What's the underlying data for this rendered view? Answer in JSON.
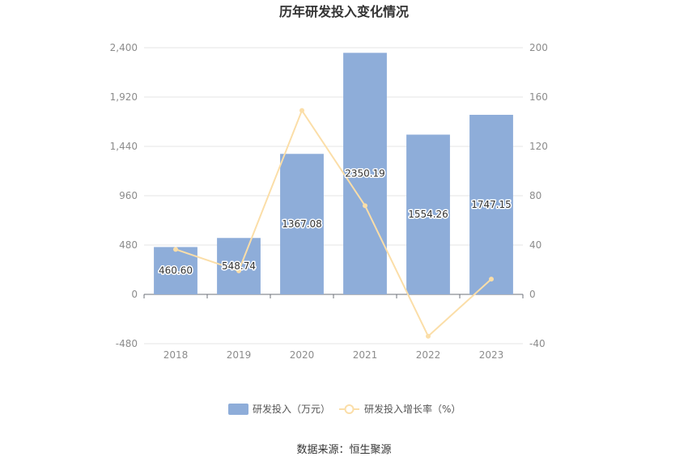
{
  "chart_data": {
    "type": "bar",
    "title": "历年研发投入变化情况",
    "categories": [
      "2018",
      "2019",
      "2020",
      "2021",
      "2022",
      "2023"
    ],
    "series": [
      {
        "name": "研发投入（万元）",
        "type": "bar",
        "axis": "left",
        "values": [
          460.6,
          548.74,
          1367.08,
          2350.19,
          1554.26,
          1747.15
        ],
        "labels": [
          "460.60",
          "548.74",
          "1367.08",
          "2350.19",
          "1554.26",
          "1747.15"
        ],
        "color": "#8eadd9"
      },
      {
        "name": "研发投入增长率（%）",
        "type": "line",
        "axis": "right",
        "values": [
          36.5,
          19.1,
          149.1,
          71.9,
          -33.9,
          12.4
        ],
        "color": "#fbdea8"
      }
    ],
    "y_left": {
      "min": -480,
      "max": 2400,
      "ticks": [
        "-480",
        "0",
        "480",
        "960",
        "1,440",
        "1,920",
        "2,400"
      ],
      "tick_values": [
        -480,
        0,
        480,
        960,
        1440,
        1920,
        2400
      ]
    },
    "y_right": {
      "min": -40,
      "max": 200,
      "ticks": [
        "-40",
        "0",
        "40",
        "80",
        "120",
        "160",
        "200"
      ],
      "tick_values": [
        -40,
        0,
        40,
        80,
        120,
        160,
        200
      ]
    },
    "grid": true,
    "legend": "bottom-center",
    "source": "数据来源：恒生聚源"
  }
}
